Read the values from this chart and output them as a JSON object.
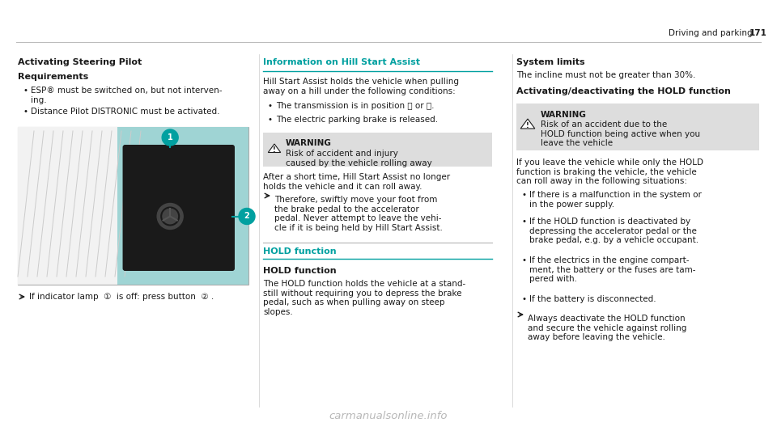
{
  "page_width": 9.6,
  "page_height": 5.33,
  "bg_color": "#ffffff",
  "header_text": "Driving and parking",
  "page_number": "171",
  "teal_color": "#00a0a0",
  "dark_color": "#1a1a1a",
  "light_gray": "#e8e8e8",
  "warning_bg": "#dddddd",
  "col1_title": "Activating Steering Pilot",
  "col1_req_title": "Requirements",
  "col1_bullet1_a": "ESP",
  "col1_bullet1_b": "®",
  "col1_bullet1_c": " must be switched on, but not interven-\ning.",
  "col1_bullet2": "Distance Pilot DISTRONIC must be activated.",
  "col1_arrow_text": "If indicator lamp  ①  is off: press button  ② .",
  "col2_title": "Information on Hill Start Assist",
  "col2_intro": "Hill Start Assist holds the vehicle when pulling\naway on a hill under the following conditions:",
  "col2_bullet1": "The transmission is in position ⓓ or Ⓡ.",
  "col2_bullet2": "The electric parking brake is released.",
  "col2_warn_title": "WARNING",
  "col2_warn_body": "Risk of accident and injury\ncaused by the vehicle rolling away",
  "col2_after_warn": "After a short time, Hill Start Assist no longer\nholds the vehicle and it can roll away.",
  "col2_arrow_text": "Therefore, swiftly move your foot from\nthe brake pedal to the accelerator\npedal. Never attempt to leave the vehi-\ncle if it is being held by Hill Start Assist.",
  "col2_hold_title": "HOLD function",
  "col2_hold_subtitle": "HOLD function",
  "col2_hold_body": "The HOLD function holds the vehicle at a stand-\nstill without requiring you to depress the brake\npedal, such as when pulling away on steep\nslopes.",
  "col3_sys_title": "System limits",
  "col3_sys_body": "The incline must not be greater than 30%.",
  "col3_hold_title": "Activating/deactivating the HOLD function",
  "col3_warn_title": "WARNING",
  "col3_warn_body": "Risk of an accident due to the\nHOLD function being active when you\nleave the vehicle",
  "col3_body": "If you leave the vehicle while only the HOLD\nfunction is braking the vehicle, the vehicle\ncan roll away in the following situations:",
  "col3_bullet1": "If there is a malfunction in the system or\nin the power supply.",
  "col3_bullet2": "If the HOLD function is deactivated by\ndepressing the accelerator pedal or the\nbrake pedal, e.g. by a vehicle occupant.",
  "col3_bullet3": "If the electrics in the engine compart-\nment, the battery or the fuses are tam-\npered with.",
  "col3_bullet4": "If the battery is disconnected.",
  "col3_arrow_text": "Always deactivate the HOLD function\nand secure the vehicle against rolling\naway before leaving the vehicle.",
  "watermark": "carmanualsonline.info"
}
